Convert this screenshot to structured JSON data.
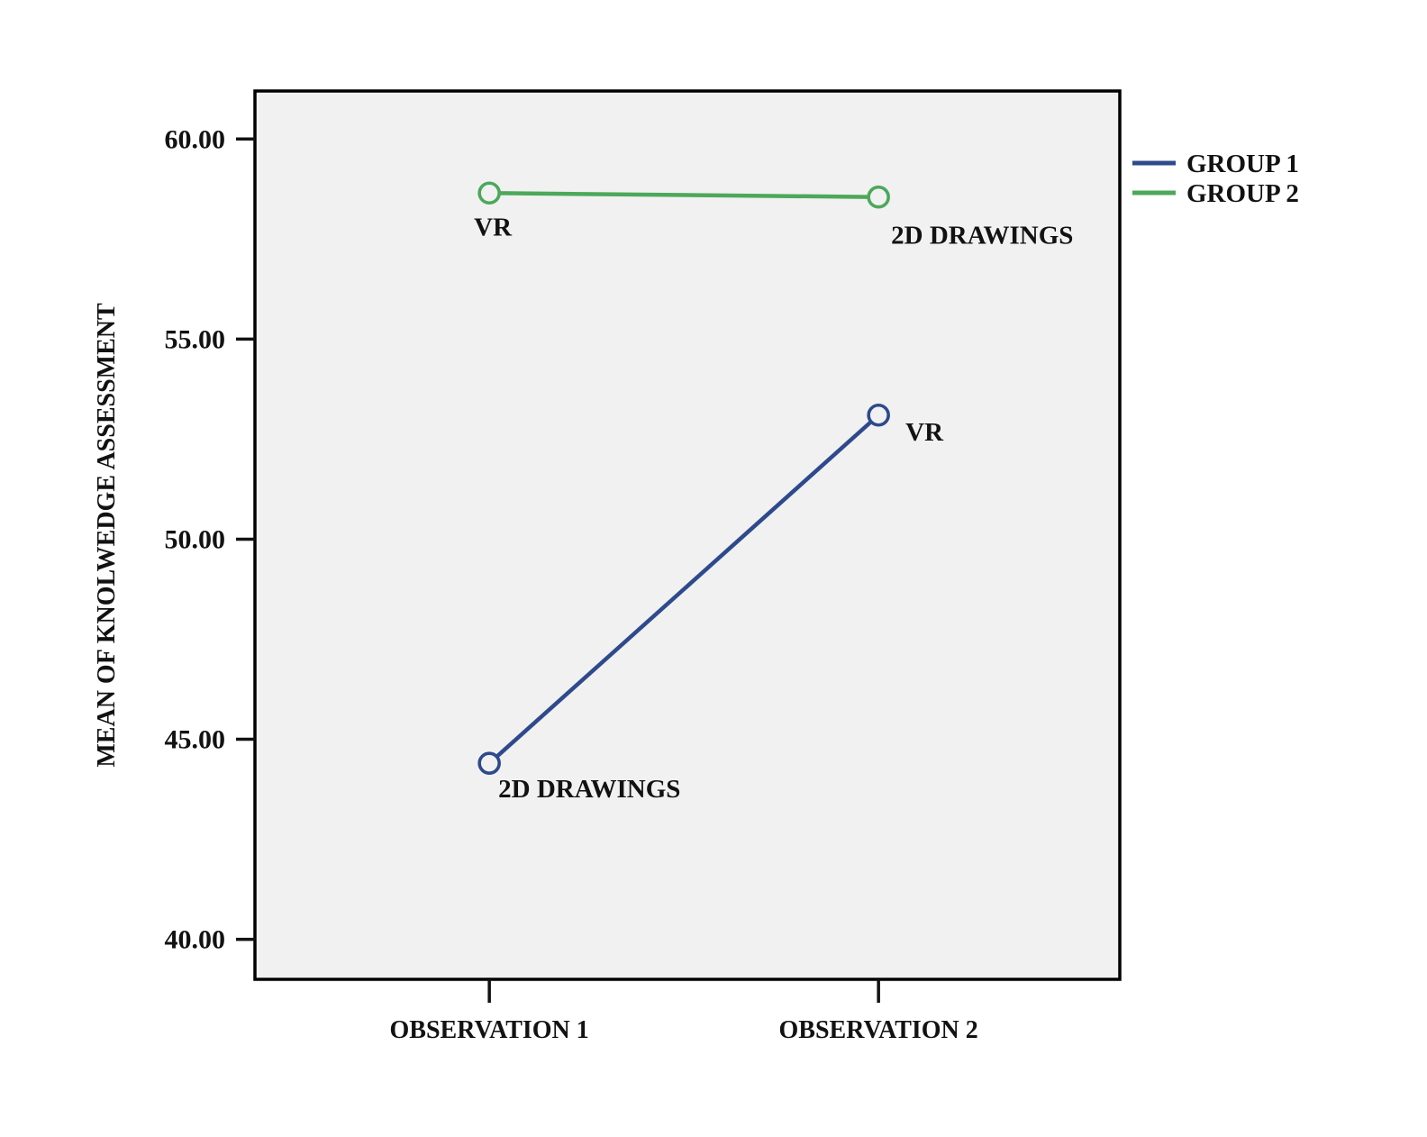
{
  "page": {
    "background": "#ffffff",
    "text_color": "#121212"
  },
  "chart_data": {
    "type": "line",
    "title": "",
    "xlabel": "",
    "ylabel": "MEAN OF KNOLWEDGE ASSESSMENT",
    "categories": [
      "OBSERVATION 1",
      "OBSERVATION 2"
    ],
    "ylim": [
      39.0,
      61.2
    ],
    "ytick_values": [
      40,
      45,
      50,
      55,
      60
    ],
    "ytick_labels": [
      "40.00",
      "45.00",
      "50.00",
      "55.00",
      "60.00"
    ],
    "grid": false,
    "plot_background": "#f1f1f1",
    "plot_border_color": "#000000",
    "marker": "open-circle",
    "legend_position": "outside-top-right",
    "series": [
      {
        "name": "GROUP 1",
        "color": "#2e4a8c",
        "values": [
          44.4,
          53.1
        ],
        "point_labels": [
          "2D DRAWINGS",
          "VR"
        ]
      },
      {
        "name": "GROUP 2",
        "color": "#4ca85a",
        "values": [
          58.65,
          58.55
        ],
        "point_labels": [
          "VR",
          "2D DRAWINGS"
        ]
      }
    ]
  }
}
